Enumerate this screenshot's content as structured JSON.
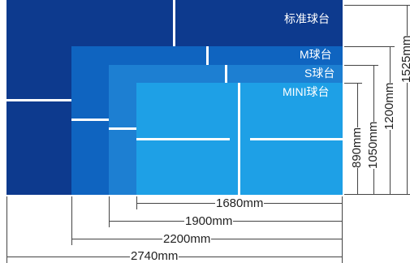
{
  "tables": [
    {
      "label": "标准球台",
      "color": "#0d3a8e"
    },
    {
      "label": "M球台",
      "color": "#0f64c0"
    },
    {
      "label": "S球台",
      "color": "#1d7fd2"
    },
    {
      "label": "MINI球台",
      "color": "#1ea0e6"
    }
  ],
  "widths": [
    "1680mm",
    "1900mm",
    "2200mm",
    "2740mm"
  ],
  "heights": [
    "890mm",
    "1050mm",
    "1200mm",
    "1525mm"
  ]
}
